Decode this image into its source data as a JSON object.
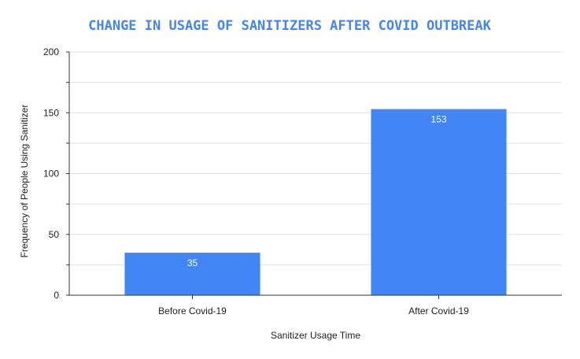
{
  "chart_data": {
    "type": "bar",
    "title": "CHANGE IN USAGE OF SANITIZERS AFTER COVID OUTBREAK",
    "xlabel": "Sanitizer Usage Time",
    "ylabel": "Frequency of People Using Sanitizer",
    "categories": [
      "Before Covid-19",
      "After Covid-19"
    ],
    "values": [
      35,
      153
    ],
    "data_labels": [
      "35",
      "153"
    ],
    "ylim": [
      0,
      200
    ],
    "yticks": [
      0,
      50,
      100,
      150,
      200
    ],
    "ytick_labels": [
      "0",
      "50",
      "100",
      "150",
      "200"
    ],
    "grid": true,
    "bar_color": "#4285f4",
    "title_color": "#4285f4",
    "grid_color": "#e0e0e0"
  }
}
